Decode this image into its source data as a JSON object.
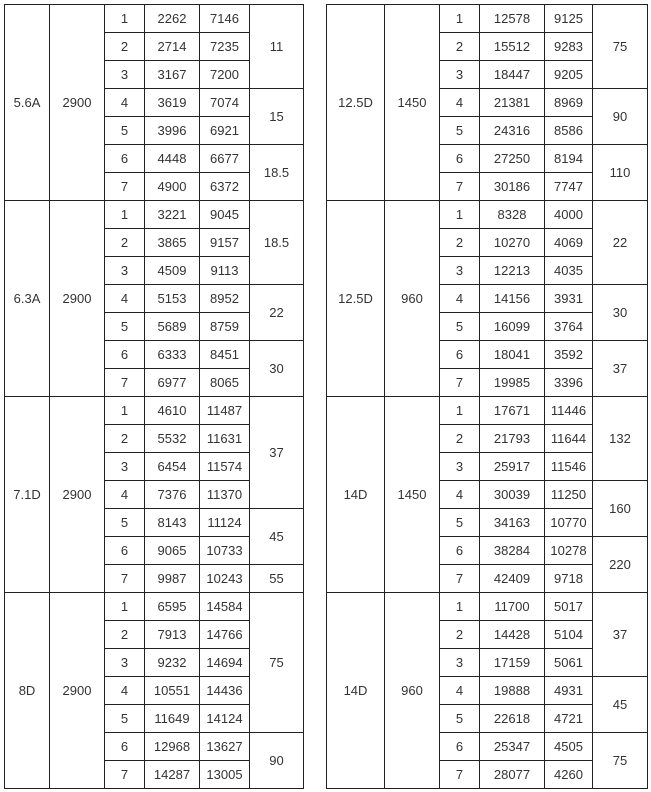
{
  "left_table": [
    {
      "model": "5.6A",
      "speed": "2900",
      "rows": [
        [
          "1",
          "2262",
          "7146"
        ],
        [
          "2",
          "2714",
          "7235"
        ],
        [
          "3",
          "3167",
          "7200"
        ],
        [
          "4",
          "3619",
          "7074"
        ],
        [
          "5",
          "3996",
          "6921"
        ],
        [
          "6",
          "4448",
          "6677"
        ],
        [
          "7",
          "4900",
          "6372"
        ]
      ],
      "power": [
        [
          "11",
          3
        ],
        [
          "15",
          2
        ],
        [
          "18.5",
          2
        ]
      ]
    },
    {
      "model": "6.3A",
      "speed": "2900",
      "rows": [
        [
          "1",
          "3221",
          "9045"
        ],
        [
          "2",
          "3865",
          "9157"
        ],
        [
          "3",
          "4509",
          "9113"
        ],
        [
          "4",
          "5153",
          "8952"
        ],
        [
          "5",
          "5689",
          "8759"
        ],
        [
          "6",
          "6333",
          "8451"
        ],
        [
          "7",
          "6977",
          "8065"
        ]
      ],
      "power": [
        [
          "18.5",
          3
        ],
        [
          "22",
          2
        ],
        [
          "30",
          2
        ]
      ]
    },
    {
      "model": "7.1D",
      "speed": "2900",
      "rows": [
        [
          "1",
          "4610",
          "11487"
        ],
        [
          "2",
          "5532",
          "11631"
        ],
        [
          "3",
          "6454",
          "11574"
        ],
        [
          "4",
          "7376",
          "11370"
        ],
        [
          "5",
          "8143",
          "11124"
        ],
        [
          "6",
          "9065",
          "10733"
        ],
        [
          "7",
          "9987",
          "10243"
        ]
      ],
      "power": [
        [
          "37",
          4
        ],
        [
          "45",
          2
        ],
        [
          "55",
          1
        ]
      ]
    },
    {
      "model": "8D",
      "speed": "2900",
      "rows": [
        [
          "1",
          "6595",
          "14584"
        ],
        [
          "2",
          "7913",
          "14766"
        ],
        [
          "3",
          "9232",
          "14694"
        ],
        [
          "4",
          "10551",
          "14436"
        ],
        [
          "5",
          "11649",
          "14124"
        ],
        [
          "6",
          "12968",
          "13627"
        ],
        [
          "7",
          "14287",
          "13005"
        ]
      ],
      "power": [
        [
          "75",
          5
        ],
        [
          "90",
          2
        ]
      ]
    }
  ],
  "right_table": [
    {
      "model": "12.5D",
      "speed": "1450",
      "rows": [
        [
          "1",
          "12578",
          "9125"
        ],
        [
          "2",
          "15512",
          "9283"
        ],
        [
          "3",
          "18447",
          "9205"
        ],
        [
          "4",
          "21381",
          "8969"
        ],
        [
          "5",
          "24316",
          "8586"
        ],
        [
          "6",
          "27250",
          "8194"
        ],
        [
          "7",
          "30186",
          "7747"
        ]
      ],
      "power": [
        [
          "75",
          3
        ],
        [
          "90",
          2
        ],
        [
          "110",
          2
        ]
      ]
    },
    {
      "model": "12.5D",
      "speed": "960",
      "rows": [
        [
          "1",
          "8328",
          "4000"
        ],
        [
          "2",
          "10270",
          "4069"
        ],
        [
          "3",
          "12213",
          "4035"
        ],
        [
          "4",
          "14156",
          "3931"
        ],
        [
          "5",
          "16099",
          "3764"
        ],
        [
          "6",
          "18041",
          "3592"
        ],
        [
          "7",
          "19985",
          "3396"
        ]
      ],
      "power": [
        [
          "22",
          3
        ],
        [
          "30",
          2
        ],
        [
          "37",
          2
        ]
      ]
    },
    {
      "model": "14D",
      "speed": "1450",
      "rows": [
        [
          "1",
          "17671",
          "11446"
        ],
        [
          "2",
          "21793",
          "11644"
        ],
        [
          "3",
          "25917",
          "11546"
        ],
        [
          "4",
          "30039",
          "11250"
        ],
        [
          "5",
          "34163",
          "10770"
        ],
        [
          "6",
          "38284",
          "10278"
        ],
        [
          "7",
          "42409",
          "9718"
        ]
      ],
      "power": [
        [
          "132",
          3
        ],
        [
          "160",
          2
        ],
        [
          "220",
          2
        ]
      ]
    },
    {
      "model": "14D",
      "speed": "960",
      "rows": [
        [
          "1",
          "11700",
          "5017"
        ],
        [
          "2",
          "14428",
          "5104"
        ],
        [
          "3",
          "17159",
          "5061"
        ],
        [
          "4",
          "19888",
          "4931"
        ],
        [
          "5",
          "22618",
          "4721"
        ],
        [
          "6",
          "25347",
          "4505"
        ],
        [
          "7",
          "28077",
          "4260"
        ]
      ],
      "power": [
        [
          "37",
          3
        ],
        [
          "45",
          2
        ],
        [
          "75",
          2
        ]
      ]
    }
  ]
}
